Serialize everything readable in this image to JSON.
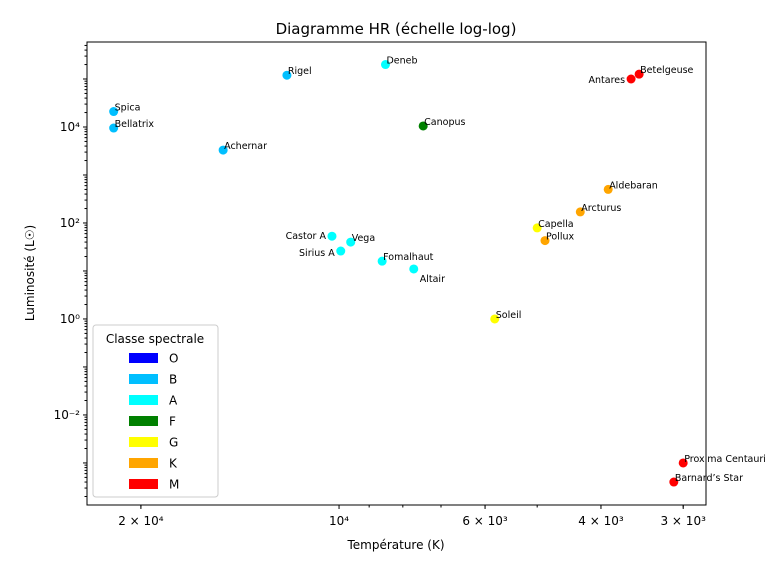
{
  "chart_data": {
    "type": "scatter",
    "title": "Diagramme HR (échelle log-log)",
    "xlabel": "Température (K)",
    "ylabel": "Luminosité (L☉)",
    "xscale": "log",
    "yscale": "log",
    "x_inverted": true,
    "xlim": [
      24150,
      2770
    ],
    "ylim": [
      0.000133,
      590000
    ],
    "grid": false,
    "x_ticks": [
      {
        "value": 20000,
        "label": "2 × 10⁴"
      },
      {
        "value": 10000,
        "label": "10⁴"
      },
      {
        "value": 6000,
        "label": "6 × 10³"
      },
      {
        "value": 4000,
        "label": "4 × 10³"
      },
      {
        "value": 3000,
        "label": "3 × 10³"
      }
    ],
    "y_ticks": [
      {
        "value": 0.01,
        "label": "10⁻²"
      },
      {
        "value": 1,
        "label": "10⁰"
      },
      {
        "value": 100,
        "label": "10²"
      },
      {
        "value": 10000,
        "label": "10⁴"
      }
    ],
    "legend": {
      "title": "Classe spectrale",
      "placement": "lower-left",
      "entries": [
        {
          "label": "O",
          "color": "#0000ff"
        },
        {
          "label": "B",
          "color": "#00bfff"
        },
        {
          "label": "A",
          "color": "#00ffff"
        },
        {
          "label": "F",
          "color": "#008000"
        },
        {
          "label": "G",
          "color": "#ffff00"
        },
        {
          "label": "K",
          "color": "#ffa500"
        },
        {
          "label": "M",
          "color": "#ff0000"
        }
      ]
    },
    "points": [
      {
        "name": "Spica",
        "temperature": 22000,
        "luminosity": 21000,
        "class": "B"
      },
      {
        "name": "Bellatrix",
        "temperature": 22000,
        "luminosity": 9500,
        "class": "B"
      },
      {
        "name": "Rigel",
        "temperature": 12000,
        "luminosity": 120000,
        "class": "B"
      },
      {
        "name": "Deneb",
        "temperature": 8500,
        "luminosity": 200000,
        "class": "A"
      },
      {
        "name": "Achernar",
        "temperature": 15000,
        "luminosity": 3300,
        "class": "B"
      },
      {
        "name": "Canopus",
        "temperature": 7450,
        "luminosity": 10500,
        "class": "F"
      },
      {
        "name": "Betelgeuse",
        "temperature": 3500,
        "luminosity": 126000,
        "class": "M"
      },
      {
        "name": "Antares",
        "temperature": 3600,
        "luminosity": 100000,
        "class": "M"
      },
      {
        "name": "Aldebaran",
        "temperature": 3900,
        "luminosity": 500,
        "class": "K"
      },
      {
        "name": "Arcturus",
        "temperature": 4300,
        "luminosity": 170,
        "class": "K"
      },
      {
        "name": "Capella",
        "temperature": 5000,
        "luminosity": 79,
        "class": "G"
      },
      {
        "name": "Pollux",
        "temperature": 4865,
        "luminosity": 43,
        "class": "K"
      },
      {
        "name": "Castor A",
        "temperature": 10250,
        "luminosity": 53,
        "class": "A"
      },
      {
        "name": "Vega",
        "temperature": 9600,
        "luminosity": 40,
        "class": "A"
      },
      {
        "name": "Sirius A",
        "temperature": 9940,
        "luminosity": 26,
        "class": "A"
      },
      {
        "name": "Fomalhaut",
        "temperature": 8600,
        "luminosity": 16,
        "class": "A"
      },
      {
        "name": "Altair",
        "temperature": 7700,
        "luminosity": 11,
        "class": "A"
      },
      {
        "name": "Soleil",
        "temperature": 5800,
        "luminosity": 1,
        "class": "G"
      },
      {
        "name": "Proxima Centauri",
        "temperature": 3000,
        "luminosity": 0.001,
        "class": "M"
      },
      {
        "name": "Barnard’s Star",
        "temperature": 3100,
        "luminosity": 0.0004,
        "class": "M"
      }
    ]
  }
}
